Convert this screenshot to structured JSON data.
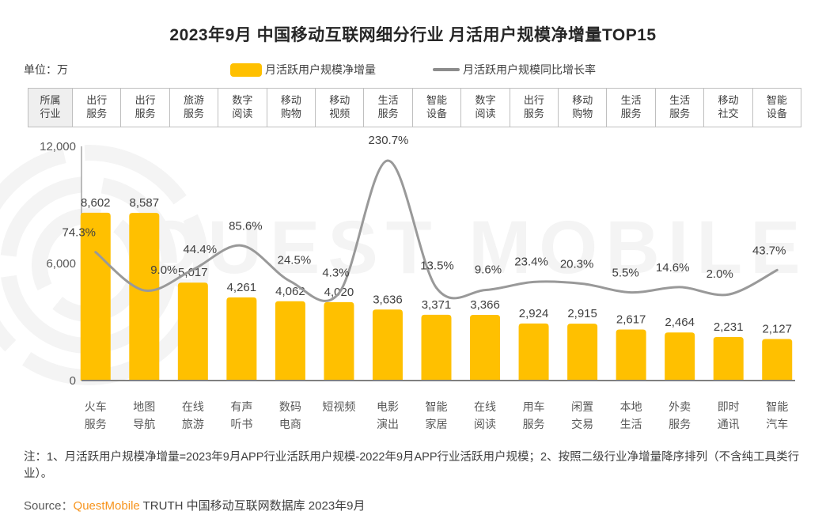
{
  "title": "2023年9月 中国移动互联网细分行业 月活用户规模净增量TOP15",
  "unit_label": "单位：万",
  "legend": {
    "bar_label": "月活跃用户规模净增量",
    "line_label": "月活跃用户规模同比增长率"
  },
  "industry_row": {
    "header": "所属行业",
    "cells": [
      "出行服务",
      "出行服务",
      "旅游服务",
      "数字阅读",
      "移动购物",
      "移动视频",
      "生活服务",
      "智能设备",
      "数字阅读",
      "出行服务",
      "移动购物",
      "生活服务",
      "生活服务",
      "移动社交",
      "智能设备"
    ]
  },
  "chart_data": {
    "type": "bar",
    "title": "2023年9月 中国移动互联网细分行业 月活用户规模净增量TOP15",
    "unit": "万",
    "categories": [
      [
        "火车",
        "服务"
      ],
      [
        "地图",
        "导航"
      ],
      [
        "在线",
        "旅游"
      ],
      [
        "有声",
        "听书"
      ],
      [
        "数码",
        "电商"
      ],
      [
        "短视频"
      ],
      [
        "电影",
        "演出"
      ],
      [
        "智能",
        "家居"
      ],
      [
        "在线",
        "阅读"
      ],
      [
        "用车",
        "服务"
      ],
      [
        "闲置",
        "交易"
      ],
      [
        "本地",
        "生活"
      ],
      [
        "外卖",
        "服务"
      ],
      [
        "即时",
        "通讯"
      ],
      [
        "智能",
        "汽车"
      ]
    ],
    "series": [
      {
        "name": "月活跃用户规模净增量",
        "type": "bar",
        "color": "#FFC000",
        "values": [
          8602,
          8587,
          5017,
          4261,
          4062,
          4020,
          3636,
          3371,
          3366,
          2924,
          2915,
          2617,
          2464,
          2231,
          2127
        ]
      },
      {
        "name": "月活跃用户规模同比增长率",
        "type": "line",
        "color": "#999999",
        "values": [
          74.3,
          9.0,
          44.4,
          85.6,
          24.5,
          4.3,
          230.7,
          13.5,
          9.6,
          23.4,
          20.3,
          5.5,
          14.6,
          2.0,
          43.7
        ]
      }
    ],
    "ylabel": "",
    "xlabel": "",
    "ylim": [
      0,
      12000
    ],
    "yticks": [
      0,
      6000,
      12000
    ],
    "y2lim": [
      -145,
      255
    ],
    "grid": false,
    "legend_position": "top"
  },
  "watermark": "QUEST MOBILE",
  "note": "注：1、月活跃用户规模净增量=2023年9月APP行业活跃用户规模-2022年9月APP行业活跃用户规模；2、按照二级行业净增量降序排列（不含纯工具类行业）。",
  "source": {
    "prefix": "Source：",
    "brand": "QuestMobile",
    "rest": " TRUTH 中国移动互联网数据库 2023年9月"
  },
  "colors": {
    "bar": "#FFC000",
    "line": "#999999",
    "brand_orange": "#F7941D",
    "axis_text": "#595959",
    "label_text": "#404040"
  }
}
